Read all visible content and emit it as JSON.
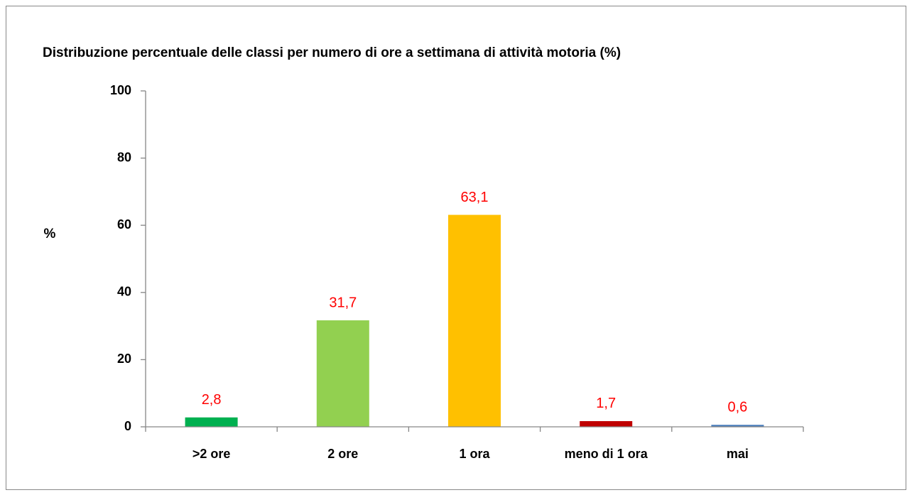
{
  "chart_data": {
    "type": "bar",
    "title": "Distribuzione  percentuale delle classi per numero di ore a settimana di attività motoria  (%)",
    "y_label": "%",
    "categories": [
      ">2 ore",
      "2 ore",
      "1 ora",
      "meno di 1 ora",
      "mai"
    ],
    "values": [
      2.8,
      31.7,
      63.1,
      1.7,
      0.6
    ],
    "value_labels": [
      "2,8",
      "31,7",
      "63,1",
      "1,7",
      "0,6"
    ],
    "colors": [
      "#00b050",
      "#92d050",
      "#ffc000",
      "#c00000",
      "#4f81bd"
    ],
    "ylim": [
      0,
      100
    ],
    "yticks": [
      0,
      20,
      40,
      60,
      80,
      100
    ],
    "grid": false
  }
}
